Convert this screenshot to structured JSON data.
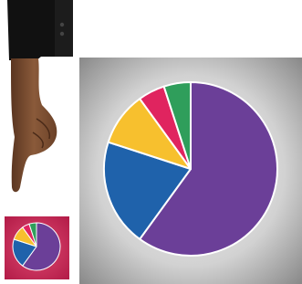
{
  "chart_data": {
    "type": "pie",
    "series": [
      {
        "name": null,
        "color": "#6b3f98",
        "values": [
          60
        ]
      },
      {
        "name": null,
        "color": "#1f62ab",
        "values": [
          20
        ]
      },
      {
        "name": null,
        "color": "#f7c02e",
        "values": [
          10
        ]
      },
      {
        "name": null,
        "color": "#e0245f",
        "values": [
          5
        ]
      },
      {
        "name": null,
        "color": "#2f9e5b",
        "values": [
          5
        ]
      }
    ]
  }
}
